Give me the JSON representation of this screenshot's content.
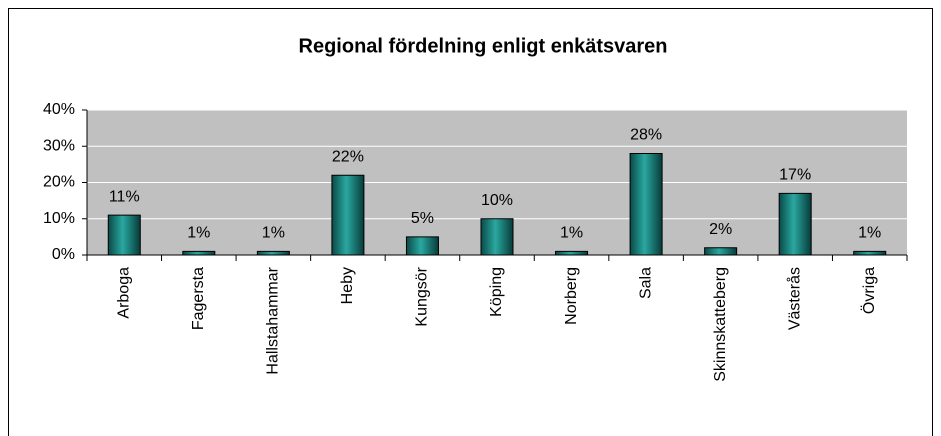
{
  "chart_data": {
    "type": "bar",
    "title": "Regional fördelning enligt enkätsvaren",
    "categories": [
      "Arboga",
      "Fagersta",
      "Hallstahammar",
      "Heby",
      "Kungsör",
      "Köping",
      "Norberg",
      "Sala",
      "Skinnskatteberg",
      "Västerås",
      "Övriga"
    ],
    "values": [
      11,
      1,
      1,
      22,
      5,
      10,
      1,
      28,
      2,
      17,
      1
    ],
    "value_labels": [
      "11%",
      "1%",
      "1%",
      "22%",
      "5%",
      "10%",
      "1%",
      "28%",
      "2%",
      "17%",
      "1%"
    ],
    "color": "#1a7f7a",
    "ylim": [
      0,
      40
    ],
    "yticks": [
      {
        "value": 0,
        "label": "0%"
      },
      {
        "value": 10,
        "label": "10%"
      },
      {
        "value": 20,
        "label": "20%"
      },
      {
        "value": 30,
        "label": "30%"
      },
      {
        "value": 40,
        "label": "40%"
      }
    ],
    "grid": true
  }
}
